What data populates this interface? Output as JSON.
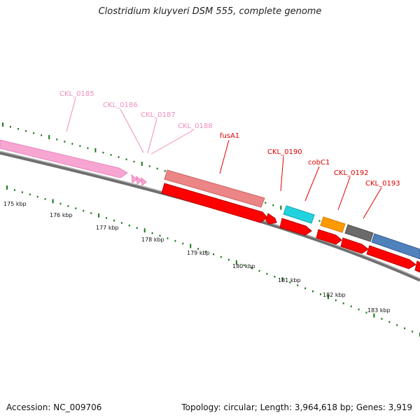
{
  "title": "Clostridium kluyveri DSM 555, complete genome",
  "footer": {
    "accession": "Accession: NC_009706",
    "summary": "Topology: circular; Length: 3,964,618 bp; Genes: 3,919"
  },
  "scale": {
    "labels": [
      "175 kbp",
      "176 kbp",
      "177 kbp",
      "178 kbp",
      "179 kbp",
      "180 kbp",
      "181 kbp",
      "182 kbp",
      "183 kbp"
    ]
  },
  "genes": [
    {
      "label": "CKL_0185",
      "strand": "outer",
      "color": "#f9a8d4"
    },
    {
      "label": "CKL_0186",
      "strand": "outer",
      "color": "#f9a8d4"
    },
    {
      "label": "CKL_0187",
      "strand": "outer",
      "color": "#f9a8d4"
    },
    {
      "label": "CKL_0188",
      "strand": "outer",
      "color": "#f9a8d4"
    },
    {
      "label": "fusA1",
      "strand": "outer",
      "color": "#ef8080"
    },
    {
      "label": "CKL_0190",
      "strand": "inner",
      "color": "#ff0000"
    },
    {
      "label": "cobC1",
      "strand": "outer",
      "color": "#22d3e0"
    },
    {
      "label": "CKL_0192",
      "strand": "outer",
      "color": "#ff9900"
    },
    {
      "label": "CKL_0193",
      "strand": "outer",
      "color": "#4f81bd"
    }
  ],
  "colors": {
    "pink_label": "#f08cc0",
    "red_label": "#e00000",
    "tick": "#1a7a1a",
    "backbone": "#8a8a8a",
    "gray_gene": "#6b6b6b",
    "red_gene": "#ff0000"
  }
}
